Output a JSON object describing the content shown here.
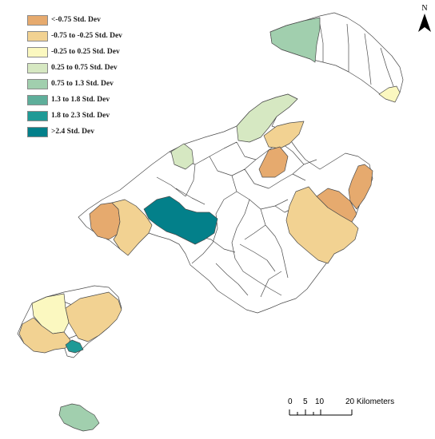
{
  "legend": {
    "items": [
      {
        "label": "<-0.75 Std. Dev",
        "color": "#e6aa6e"
      },
      {
        "label": "-0.75 to -0.25 Std. Dev",
        "color": "#f2d292"
      },
      {
        "label": "-0.25 to 0.25 Std. Dev",
        "color": "#fbf8c0"
      },
      {
        "label": "0.25 to 0.75 Std. Dev",
        "color": "#d6e8c2"
      },
      {
        "label": "0.75 to 1.3 Std. Dev",
        "color": "#a1cfae"
      },
      {
        "label": "1.3 to 1.8 Std. Dev",
        "color": "#5eae9a"
      },
      {
        "label": "1.8 to 2.3 Std. Dev",
        "color": "#1f9a96"
      },
      {
        "label": ">2.4 Std. Dev",
        "color": "#03808a"
      }
    ]
  },
  "north_arrow": {
    "letter": "N"
  },
  "scale_bar": {
    "ticks": [
      "0",
      "5",
      "10",
      "20 Kilometers"
    ]
  },
  "colors": {
    "unclassified": "#ffffff",
    "border": "#4a4a4a"
  }
}
